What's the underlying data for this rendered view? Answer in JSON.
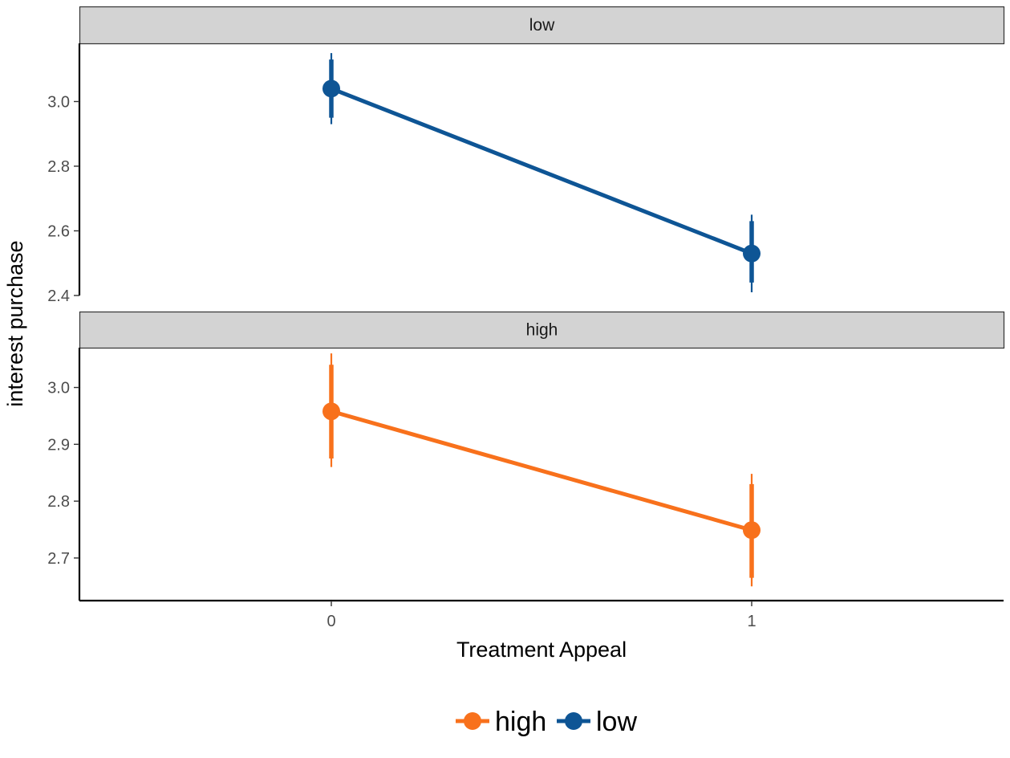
{
  "chart_data": {
    "type": "line",
    "xlabel": "Treatment Appeal",
    "ylabel": "interest purchase",
    "x_categories": [
      "0",
      "1"
    ],
    "legend": {
      "position": "bottom",
      "entries": [
        {
          "name": "high",
          "color": "#f8711c"
        },
        {
          "name": "low",
          "color": "#0e5595"
        }
      ]
    },
    "panels": [
      {
        "strip": "low",
        "color": "#0e5595",
        "ylim": [
          2.4,
          3.18
        ],
        "yticks": [
          2.4,
          2.6,
          2.8,
          3.0
        ],
        "ytick_labels": [
          "2.4",
          "2.6",
          "2.8",
          "3.0"
        ],
        "points": [
          {
            "x": "0",
            "y": 3.04,
            "inner": [
              2.95,
              3.13
            ],
            "outer": [
              2.93,
              3.15
            ]
          },
          {
            "x": "1",
            "y": 2.53,
            "inner": [
              2.44,
              2.63
            ],
            "outer": [
              2.41,
              2.65
            ]
          }
        ]
      },
      {
        "strip": "high",
        "color": "#f8711c",
        "ylim": [
          2.625,
          3.07
        ],
        "yticks": [
          2.7,
          2.8,
          2.9,
          3.0
        ],
        "ytick_labels": [
          "2.7",
          "2.8",
          "2.9",
          "3.0"
        ],
        "points": [
          {
            "x": "0",
            "y": 2.958,
            "inner": [
              2.875,
              3.04
            ],
            "outer": [
              2.86,
              3.06
            ]
          },
          {
            "x": "1",
            "y": 2.749,
            "inner": [
              2.665,
              2.83
            ],
            "outer": [
              2.65,
              2.848
            ]
          }
        ]
      }
    ]
  }
}
